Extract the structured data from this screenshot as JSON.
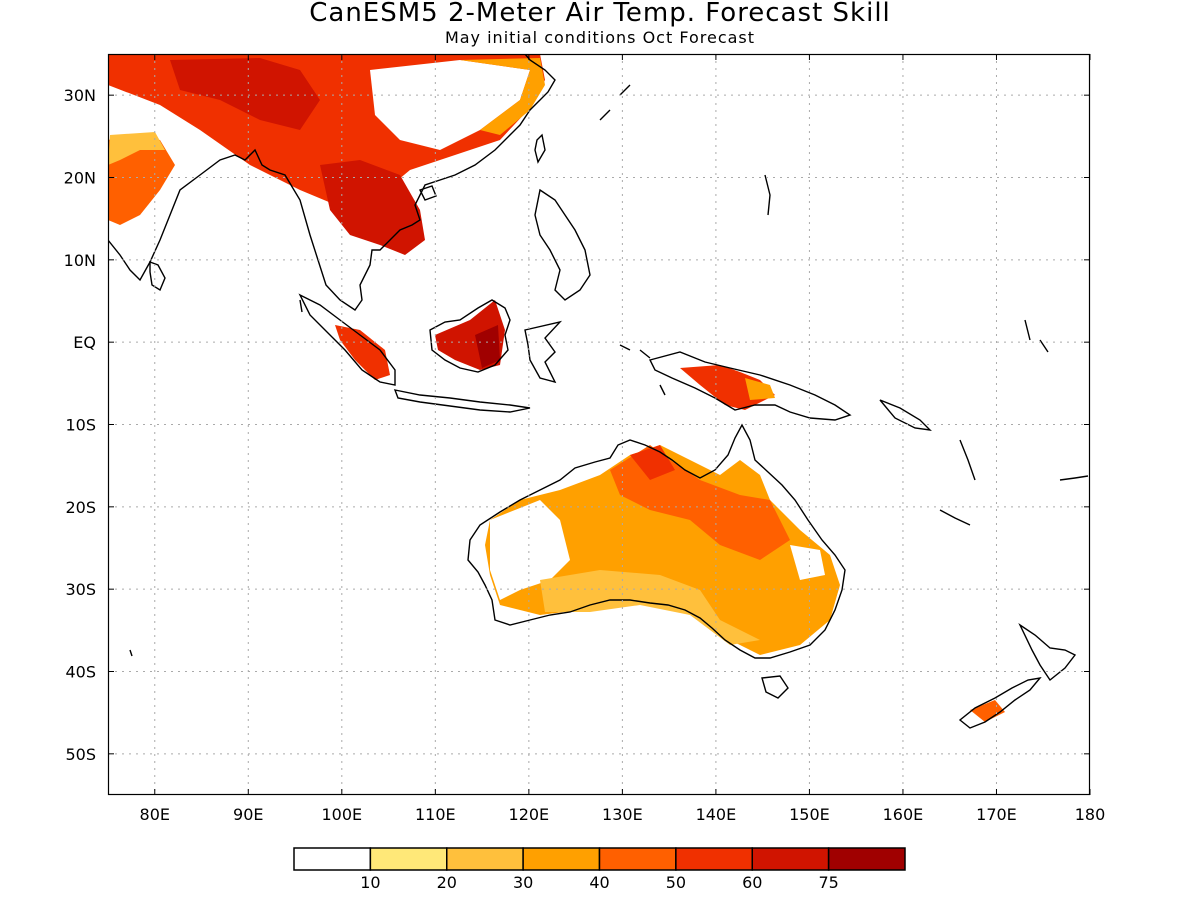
{
  "title": "CanESM5 2-Meter Air Temp. Forecast Skill",
  "subtitle": "May initial conditions  Oct Forecast",
  "map": {
    "lon_range": [
      75,
      180
    ],
    "lat_range": [
      -55,
      35
    ],
    "lat_ticks": [
      {
        "value": 30,
        "label": "30N"
      },
      {
        "value": 20,
        "label": "20N"
      },
      {
        "value": 10,
        "label": "10N"
      },
      {
        "value": 0,
        "label": "EQ"
      },
      {
        "value": -10,
        "label": "10S"
      },
      {
        "value": -20,
        "label": "20S"
      },
      {
        "value": -30,
        "label": "30S"
      },
      {
        "value": -40,
        "label": "40S"
      },
      {
        "value": -50,
        "label": "50S"
      }
    ],
    "lon_ticks": [
      {
        "value": 80,
        "label": "80E"
      },
      {
        "value": 90,
        "label": "90E"
      },
      {
        "value": 100,
        "label": "100E"
      },
      {
        "value": 110,
        "label": "110E"
      },
      {
        "value": 120,
        "label": "120E"
      },
      {
        "value": 130,
        "label": "130E"
      },
      {
        "value": 140,
        "label": "140E"
      },
      {
        "value": 150,
        "label": "150E"
      },
      {
        "value": 160,
        "label": "160E"
      },
      {
        "value": 170,
        "label": "170E"
      },
      {
        "value": 180,
        "label": "180"
      }
    ],
    "grid": "dotted"
  },
  "colorbar": {
    "colors": [
      "#ffffff",
      "#ffe878",
      "#ffc03c",
      "#ffa000",
      "#ff6000",
      "#f03000",
      "#d01400",
      "#a00000"
    ],
    "labels": [
      "10",
      "20",
      "30",
      "40",
      "50",
      "60",
      "75"
    ]
  }
}
